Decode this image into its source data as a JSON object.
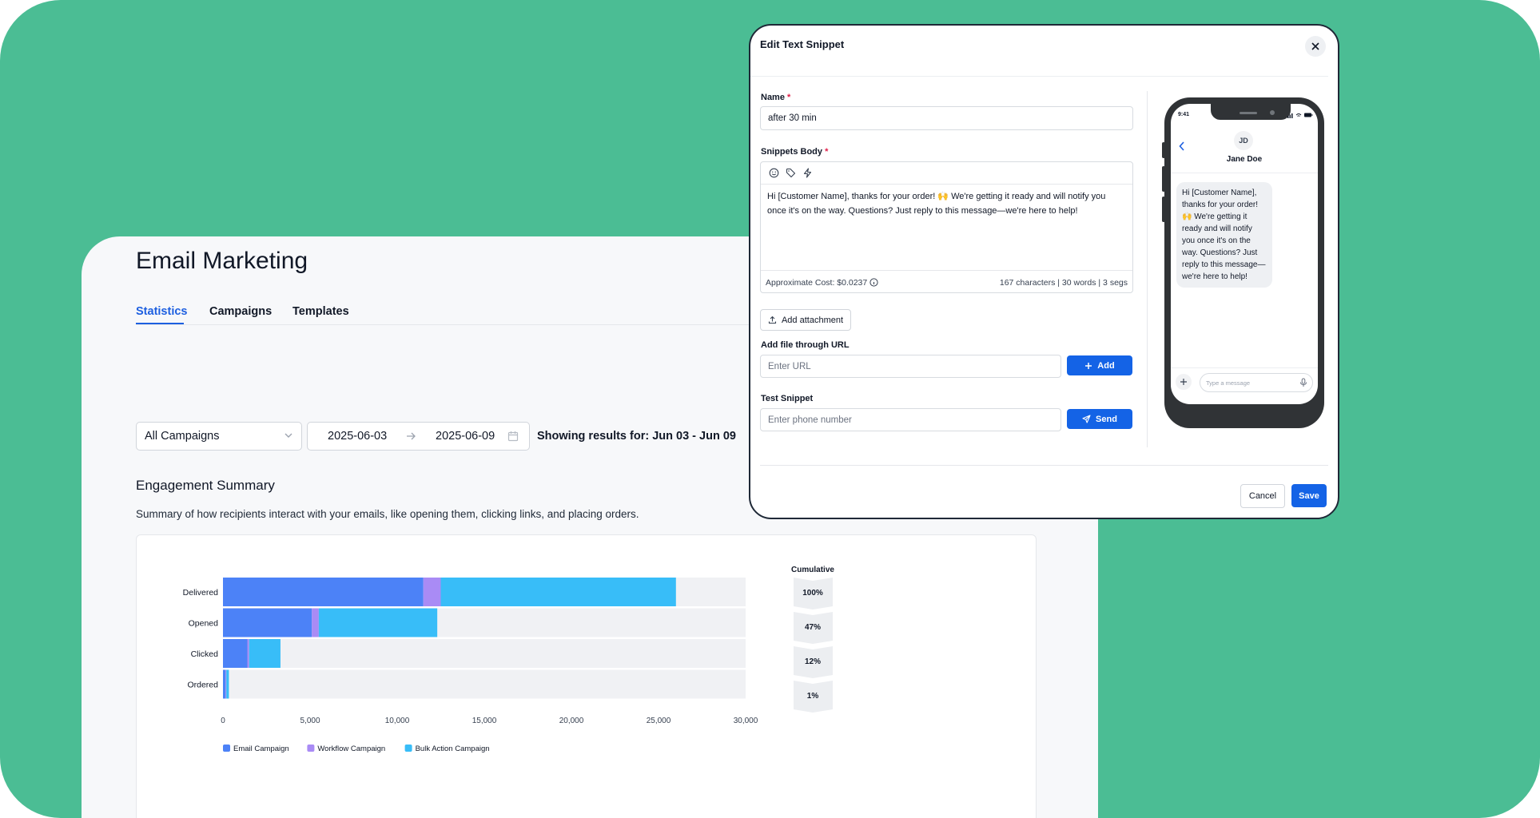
{
  "app": {
    "title": "Email Marketing",
    "tabs": [
      {
        "label": "Statistics",
        "active": true
      },
      {
        "label": "Campaigns",
        "active": false
      },
      {
        "label": "Templates",
        "active": false
      }
    ],
    "filters": {
      "campaign_select": "All Campaigns",
      "date_from": "2025-06-03",
      "date_to": "2025-06-09",
      "showing_text": "Showing results for: Jun 03 - Jun 09"
    },
    "engagement": {
      "title": "Engagement Summary",
      "description": "Summary of how recipients interact with your emails, like opening them, clicking links, and placing orders."
    }
  },
  "chart_data": {
    "type": "bar",
    "orientation": "horizontal",
    "stacked": true,
    "categories": [
      "Delivered",
      "Opened",
      "Clicked",
      "Ordered"
    ],
    "series": [
      {
        "name": "Email Campaign",
        "color": "#4c82f7",
        "values": [
          11500,
          5100,
          1400,
          150
        ]
      },
      {
        "name": "Workflow Campaign",
        "color": "#a98bf5",
        "values": [
          1000,
          400,
          100,
          40
        ]
      },
      {
        "name": "Bulk Action Campaign",
        "color": "#38bdf8",
        "values": [
          13500,
          6800,
          1800,
          150
        ]
      }
    ],
    "xlim": [
      0,
      30000
    ],
    "xticks": [
      "0",
      "5,000",
      "10,000",
      "15,000",
      "20,000",
      "25,000",
      "30,000"
    ],
    "cumulative": {
      "title": "Cumulative",
      "values": [
        "100%",
        "47%",
        "12%",
        "1%"
      ]
    },
    "legend_position": "bottom-left",
    "colors": {
      "track": "#f0f1f4",
      "funnel": "#eceef1"
    }
  },
  "modal": {
    "title": "Edit Text Snippet",
    "name_label": "Name",
    "required_mark": "*",
    "name_value": "after 30 min",
    "body_label": "Snippets Body",
    "body_text": "Hi [Customer Name], thanks for your order! 🙌 We're getting it ready and will notify you once it's on the way. Questions? Just reply to this message—we're here to help!",
    "cost_text": "Approximate Cost: $0.0237",
    "stats_text": "167 characters | 30 words | 3 segs",
    "attach_label": "Add attachment",
    "url_label": "Add file through URL",
    "url_placeholder": "Enter URL",
    "add_label": "Add",
    "test_label": "Test Snippet",
    "phone_placeholder": "Enter phone number",
    "send_label": "Send",
    "cancel_label": "Cancel",
    "save_label": "Save",
    "accent": "#1463e6"
  },
  "phone": {
    "time": "9:41",
    "avatar_initials": "JD",
    "contact_name": "Jane Doe",
    "message": "Hi [Customer Name], thanks for your order! 🙌 We're getting it ready and will notify you once it's on the way. Questions? Just reply to this message—we're here to help!",
    "input_placeholder": "Type a message"
  }
}
